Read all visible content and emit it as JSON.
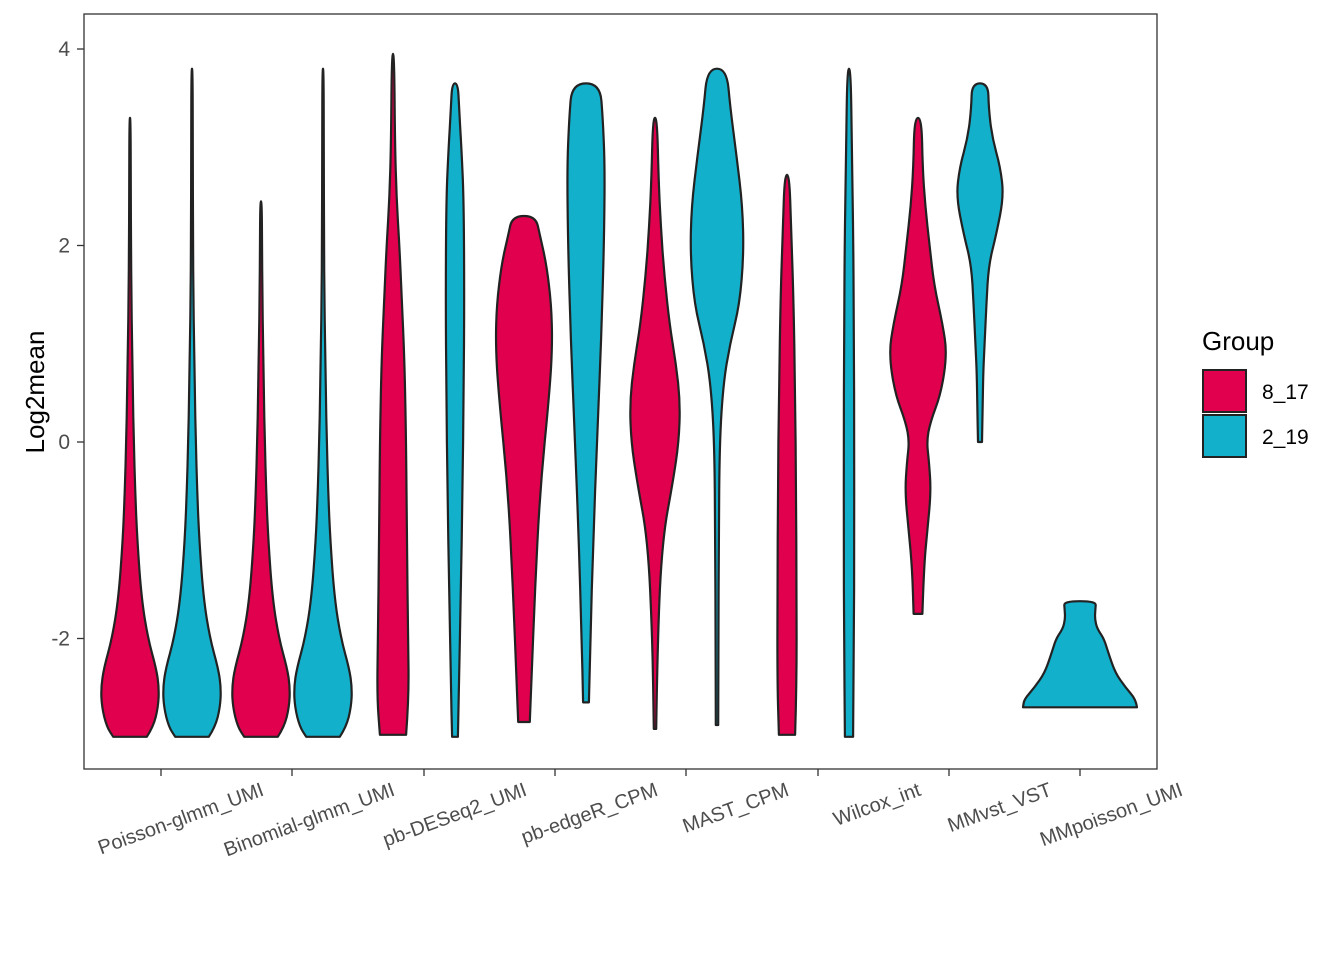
{
  "chart_data": {
    "type": "violin",
    "title": "",
    "xlabel": "",
    "ylabel": "Log2mean",
    "ylim": [
      -3.35,
      4.35
    ],
    "yticks": [
      -2,
      0,
      2,
      4
    ],
    "ytick_labels": [
      "-2",
      "0",
      "2",
      "4"
    ],
    "categories": [
      "Poisson-glmm_UMI",
      "Binomial-glmm_UMI",
      "pb-DESeq2_UMI",
      "pb-edgeR_CPM",
      "MAST_CPM",
      "Wilcox_int",
      "MMvst_VST",
      "MMpoisson_UMI"
    ],
    "legend": {
      "title": "Group",
      "position": "right",
      "entries": [
        {
          "label": "8_17",
          "color": "#E0004D"
        },
        {
          "label": "2_19",
          "color": "#12B0CB"
        }
      ]
    },
    "grid": false,
    "series": [
      {
        "name": "8_17",
        "color": "#E0004D",
        "violins": [
          {
            "category": "Poisson-glmm_UMI",
            "ymin": -3.0,
            "ymax": 3.3,
            "profile": [
              [
                -3.0,
                0.58
              ],
              [
                -2.9,
                0.8
              ],
              [
                -2.7,
                0.97
              ],
              [
                -2.5,
                1.0
              ],
              [
                -2.3,
                0.9
              ],
              [
                -2.0,
                0.62
              ],
              [
                -1.6,
                0.4
              ],
              [
                -1.0,
                0.25
              ],
              [
                -0.5,
                0.18
              ],
              [
                0.0,
                0.13
              ],
              [
                0.5,
                0.1
              ],
              [
                1.0,
                0.07
              ],
              [
                1.5,
                0.05
              ],
              [
                2.0,
                0.035
              ],
              [
                2.5,
                0.025
              ],
              [
                3.3,
                0.02
              ]
            ]
          },
          {
            "category": "Binomial-glmm_UMI",
            "ymin": -3.0,
            "ymax": 2.45,
            "profile": [
              [
                -3.0,
                0.58
              ],
              [
                -2.9,
                0.8
              ],
              [
                -2.7,
                0.97
              ],
              [
                -2.5,
                1.0
              ],
              [
                -2.3,
                0.9
              ],
              [
                -2.0,
                0.62
              ],
              [
                -1.6,
                0.4
              ],
              [
                -1.0,
                0.25
              ],
              [
                -0.5,
                0.18
              ],
              [
                0.0,
                0.13
              ],
              [
                0.5,
                0.1
              ],
              [
                1.0,
                0.07
              ],
              [
                1.5,
                0.05
              ],
              [
                2.0,
                0.035
              ],
              [
                2.45,
                0.025
              ]
            ]
          },
          {
            "category": "pb-DESeq2_UMI",
            "ymin": -2.98,
            "ymax": 3.95,
            "profile": [
              [
                -2.98,
                0.45
              ],
              [
                -2.6,
                0.55
              ],
              [
                -2.0,
                0.52
              ],
              [
                -1.0,
                0.48
              ],
              [
                0.0,
                0.45
              ],
              [
                0.8,
                0.4
              ],
              [
                1.5,
                0.3
              ],
              [
                2.0,
                0.22
              ],
              [
                2.5,
                0.12
              ],
              [
                3.0,
                0.07
              ],
              [
                3.95,
                0.04
              ]
            ]
          },
          {
            "category": "pb-edgeR_CPM",
            "ymin": -2.85,
            "ymax": 2.3,
            "profile": [
              [
                -2.85,
                0.2
              ],
              [
                -2.5,
                0.25
              ],
              [
                -1.5,
                0.38
              ],
              [
                -0.5,
                0.55
              ],
              [
                0.5,
                0.88
              ],
              [
                1.0,
                0.98
              ],
              [
                1.4,
                0.94
              ],
              [
                1.8,
                0.78
              ],
              [
                2.1,
                0.55
              ],
              [
                2.3,
                0.4
              ]
            ]
          },
          {
            "category": "MAST_CPM",
            "ymin": -2.92,
            "ymax": 3.3,
            "profile": [
              [
                -2.92,
                0.04
              ],
              [
                -2.0,
                0.09
              ],
              [
                -1.0,
                0.25
              ],
              [
                -0.4,
                0.62
              ],
              [
                0.0,
                0.82
              ],
              [
                0.4,
                0.87
              ],
              [
                0.8,
                0.72
              ],
              [
                1.2,
                0.5
              ],
              [
                1.7,
                0.32
              ],
              [
                2.2,
                0.2
              ],
              [
                2.7,
                0.12
              ],
              [
                3.3,
                0.07
              ]
            ]
          },
          {
            "category": "Wilcox_int",
            "ymin": -2.98,
            "ymax": 2.72,
            "profile": [
              [
                -2.98,
                0.28
              ],
              [
                -2.5,
                0.33
              ],
              [
                -1.5,
                0.33
              ],
              [
                -0.5,
                0.31
              ],
              [
                0.5,
                0.28
              ],
              [
                1.5,
                0.22
              ],
              [
                2.2,
                0.14
              ],
              [
                2.72,
                0.08
              ]
            ]
          },
          {
            "category": "MMvst_VST",
            "ymin": -1.75,
            "ymax": 3.3,
            "profile": [
              [
                -1.75,
                0.15
              ],
              [
                -1.3,
                0.2
              ],
              [
                -0.9,
                0.32
              ],
              [
                -0.5,
                0.45
              ],
              [
                -0.2,
                0.38
              ],
              [
                0.0,
                0.3
              ],
              [
                0.2,
                0.42
              ],
              [
                0.5,
                0.8
              ],
              [
                0.9,
                1.0
              ],
              [
                1.2,
                0.85
              ],
              [
                1.6,
                0.55
              ],
              [
                2.0,
                0.4
              ],
              [
                2.4,
                0.25
              ],
              [
                2.8,
                0.16
              ],
              [
                3.3,
                0.12
              ]
            ]
          }
        ]
      },
      {
        "name": "2_19",
        "color": "#12B0CB",
        "violins": [
          {
            "category": "Poisson-glmm_UMI",
            "ymin": -3.0,
            "ymax": 3.8,
            "profile": [
              [
                -3.0,
                0.58
              ],
              [
                -2.9,
                0.8
              ],
              [
                -2.7,
                0.97
              ],
              [
                -2.5,
                1.0
              ],
              [
                -2.3,
                0.9
              ],
              [
                -2.0,
                0.62
              ],
              [
                -1.6,
                0.4
              ],
              [
                -1.0,
                0.25
              ],
              [
                -0.5,
                0.18
              ],
              [
                0.0,
                0.13
              ],
              [
                0.5,
                0.1
              ],
              [
                1.0,
                0.07
              ],
              [
                1.5,
                0.05
              ],
              [
                2.0,
                0.035
              ],
              [
                3.0,
                0.025
              ],
              [
                3.8,
                0.02
              ]
            ]
          },
          {
            "category": "Binomial-glmm_UMI",
            "ymin": -3.0,
            "ymax": 3.8,
            "profile": [
              [
                -3.0,
                0.58
              ],
              [
                -2.9,
                0.8
              ],
              [
                -2.7,
                0.97
              ],
              [
                -2.5,
                1.0
              ],
              [
                -2.3,
                0.9
              ],
              [
                -2.0,
                0.62
              ],
              [
                -1.6,
                0.4
              ],
              [
                -1.0,
                0.25
              ],
              [
                -0.5,
                0.18
              ],
              [
                0.0,
                0.13
              ],
              [
                0.5,
                0.1
              ],
              [
                1.0,
                0.07
              ],
              [
                1.5,
                0.05
              ],
              [
                2.0,
                0.035
              ],
              [
                3.0,
                0.025
              ],
              [
                3.8,
                0.02
              ]
            ]
          },
          {
            "category": "pb-DESeq2_UMI",
            "ymin": -3.0,
            "ymax": 3.65,
            "profile": [
              [
                -3.0,
                0.1
              ],
              [
                -2.5,
                0.14
              ],
              [
                -1.5,
                0.2
              ],
              [
                -0.5,
                0.26
              ],
              [
                0.5,
                0.3
              ],
              [
                1.5,
                0.32
              ],
              [
                2.5,
                0.3
              ],
              [
                3.0,
                0.22
              ],
              [
                3.4,
                0.14
              ],
              [
                3.65,
                0.1
              ]
            ]
          },
          {
            "category": "pb-edgeR_CPM",
            "ymin": -2.65,
            "ymax": 3.65,
            "profile": [
              [
                -2.65,
                0.1
              ],
              [
                -2.0,
                0.15
              ],
              [
                -1.0,
                0.25
              ],
              [
                0.0,
                0.38
              ],
              [
                1.0,
                0.52
              ],
              [
                2.0,
                0.62
              ],
              [
                2.8,
                0.65
              ],
              [
                3.3,
                0.58
              ],
              [
                3.65,
                0.48
              ]
            ]
          },
          {
            "category": "MAST_CPM",
            "ymin": -2.88,
            "ymax": 3.8,
            "profile": [
              [
                -2.88,
                0.04
              ],
              [
                -2.0,
                0.05
              ],
              [
                -1.0,
                0.06
              ],
              [
                0.0,
                0.09
              ],
              [
                0.6,
                0.22
              ],
              [
                1.0,
                0.45
              ],
              [
                1.4,
                0.78
              ],
              [
                1.9,
                0.92
              ],
              [
                2.4,
                0.88
              ],
              [
                2.9,
                0.68
              ],
              [
                3.4,
                0.46
              ],
              [
                3.8,
                0.33
              ]
            ]
          },
          {
            "category": "Wilcox_int",
            "ymin": -3.0,
            "ymax": 3.8,
            "profile": [
              [
                -3.0,
                0.14
              ],
              [
                -2.0,
                0.17
              ],
              [
                -1.0,
                0.18
              ],
              [
                0.0,
                0.18
              ],
              [
                1.0,
                0.17
              ],
              [
                2.0,
                0.15
              ],
              [
                3.0,
                0.1
              ],
              [
                3.8,
                0.06
              ]
            ]
          },
          {
            "category": "MMvst_VST",
            "ymin": 0.0,
            "ymax": 3.65,
            "profile": [
              [
                0.0,
                0.07
              ],
              [
                0.3,
                0.09
              ],
              [
                0.7,
                0.11
              ],
              [
                1.0,
                0.16
              ],
              [
                1.4,
                0.22
              ],
              [
                1.8,
                0.3
              ],
              [
                2.1,
                0.55
              ],
              [
                2.5,
                0.82
              ],
              [
                2.8,
                0.7
              ],
              [
                3.1,
                0.42
              ],
              [
                3.4,
                0.3
              ],
              [
                3.65,
                0.28
              ]
            ]
          },
          {
            "category": "MMpoisson_UMI",
            "ymin": -2.7,
            "ymax": -1.62,
            "profile": [
              [
                -2.7,
                1.0
              ],
              [
                -2.62,
                0.98
              ],
              [
                -2.5,
                0.8
              ],
              [
                -2.35,
                0.62
              ],
              [
                -2.15,
                0.5
              ],
              [
                -2.0,
                0.42
              ],
              [
                -1.9,
                0.3
              ],
              [
                -1.8,
                0.26
              ],
              [
                -1.7,
                0.27
              ],
              [
                -1.62,
                0.28
              ]
            ]
          }
        ]
      }
    ]
  }
}
